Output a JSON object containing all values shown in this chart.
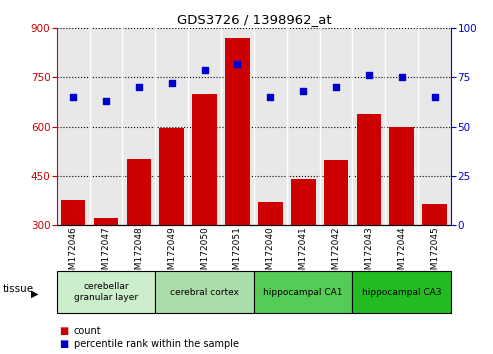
{
  "title": "GDS3726 / 1398962_at",
  "samples": [
    "GSM172046",
    "GSM172047",
    "GSM172048",
    "GSM172049",
    "GSM172050",
    "GSM172051",
    "GSM172040",
    "GSM172041",
    "GSM172042",
    "GSM172043",
    "GSM172044",
    "GSM172045"
  ],
  "counts": [
    375,
    320,
    500,
    595,
    700,
    870,
    370,
    440,
    497,
    638,
    600,
    365
  ],
  "percentiles": [
    65,
    63,
    70,
    72,
    79,
    82,
    65,
    68,
    70,
    76,
    75,
    65
  ],
  "bar_color": "#cc0000",
  "dot_color": "#0000cc",
  "ylim_left": [
    300,
    900
  ],
  "ylim_right": [
    0,
    100
  ],
  "yticks_left": [
    300,
    450,
    600,
    750,
    900
  ],
  "yticks_right": [
    0,
    25,
    50,
    75,
    100
  ],
  "plot_bg": "#e8e8e8",
  "groups": [
    {
      "label": "cerebellar\ngranular layer",
      "start": 0,
      "end": 3,
      "color": "#cceecc"
    },
    {
      "label": "cerebral cortex",
      "start": 3,
      "end": 6,
      "color": "#aaddaa"
    },
    {
      "label": "hippocampal CA1",
      "start": 6,
      "end": 9,
      "color": "#55cc55"
    },
    {
      "label": "hippocampal CA3",
      "start": 9,
      "end": 12,
      "color": "#22bb22"
    }
  ],
  "legend_count_color": "#cc0000",
  "legend_pct_color": "#0000cc",
  "count_label": "count",
  "percentile_label": "percentile rank within the sample",
  "tissue_label": "tissue"
}
